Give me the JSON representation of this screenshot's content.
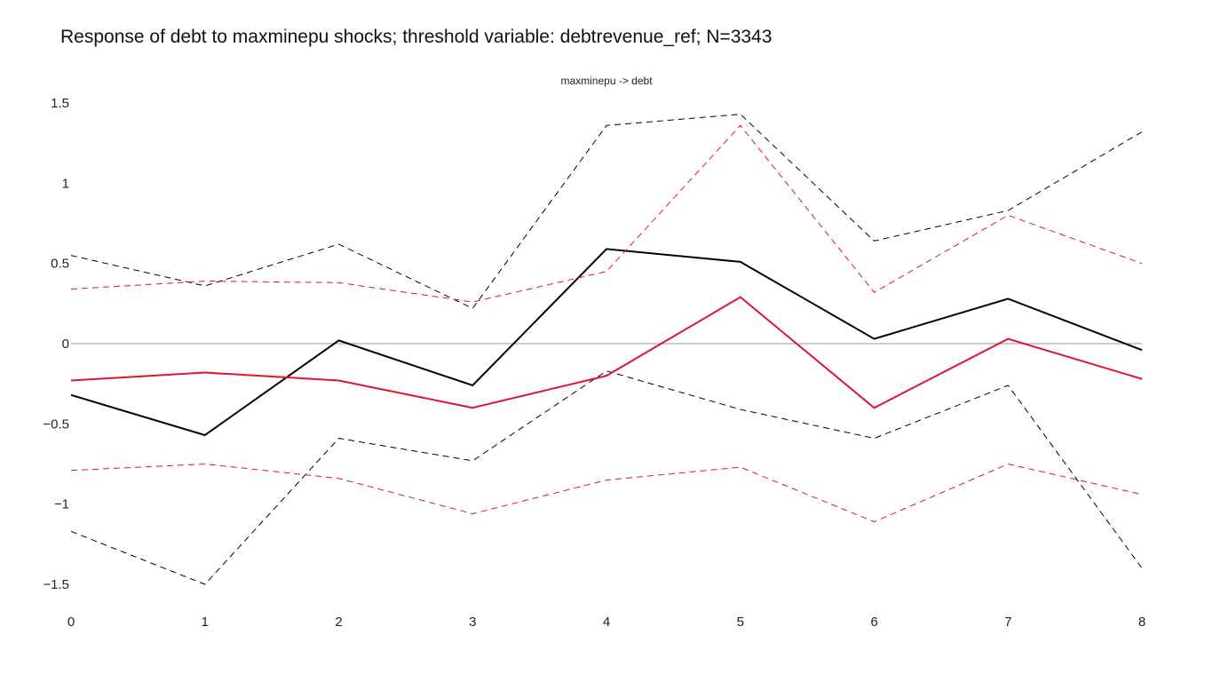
{
  "chart_data": {
    "type": "line",
    "title": "Response of debt to maxminepu shocks; threshold variable: debtrevenue_ref; N=3343",
    "subtitle": "maxminepu -> debt",
    "xlabel": "",
    "ylabel": "",
    "x": [
      0,
      1,
      2,
      3,
      4,
      5,
      6,
      7,
      8
    ],
    "xlim": [
      0,
      8
    ],
    "ylim": [
      -1.5,
      1.5
    ],
    "x_ticks": [
      "0",
      "1",
      "2",
      "3",
      "4",
      "5",
      "6",
      "7",
      "8"
    ],
    "y_ticks": [
      {
        "value": 1.5,
        "label": "1.5"
      },
      {
        "value": 1,
        "label": "1"
      },
      {
        "value": 0.5,
        "label": "0.5"
      },
      {
        "value": 0,
        "label": "0"
      },
      {
        "value": -0.5,
        "label": "−0.5"
      },
      {
        "value": -1,
        "label": "−1"
      },
      {
        "value": -1.5,
        "label": "−1.5"
      }
    ],
    "grid": false,
    "zero_line": true,
    "legend": "none",
    "series": [
      {
        "color": "#000000",
        "dash": false,
        "values": [
          -0.32,
          -0.57,
          0.02,
          -0.26,
          0.59,
          0.51,
          0.03,
          0.28,
          -0.04
        ]
      },
      {
        "color": "#000000",
        "dash": true,
        "values": [
          0.55,
          0.36,
          0.62,
          0.22,
          1.36,
          1.43,
          0.64,
          0.83,
          1.32
        ]
      },
      {
        "color": "#000000",
        "dash": true,
        "values": [
          -1.17,
          -1.5,
          -0.59,
          -0.73,
          -0.17,
          -0.41,
          -0.59,
          -0.26,
          -1.4
        ]
      },
      {
        "color": "#dc143c",
        "dash": false,
        "values": [
          -0.23,
          -0.18,
          -0.23,
          -0.4,
          -0.2,
          0.29,
          -0.4,
          0.03,
          -0.22
        ]
      },
      {
        "color": "#dc143c",
        "dash": true,
        "values": [
          0.34,
          0.39,
          0.38,
          0.26,
          0.45,
          1.36,
          0.32,
          0.8,
          0.5
        ]
      },
      {
        "color": "#dc143c",
        "dash": true,
        "values": [
          -0.79,
          -0.75,
          -0.84,
          -1.06,
          -0.85,
          -0.77,
          -1.11,
          -0.75,
          -0.94
        ]
      }
    ]
  }
}
